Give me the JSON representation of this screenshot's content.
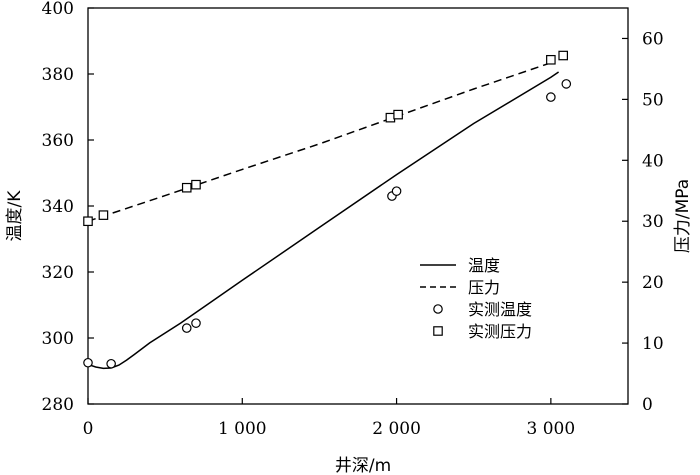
{
  "chart_data": {
    "type": "line",
    "xlabel": "井深/m",
    "ylabel_left": "温度/K",
    "ylabel_right": "压力/MPa",
    "xlim": [
      0,
      3500
    ],
    "ylim_left": [
      280,
      400
    ],
    "ylim_right": [
      0,
      65
    ],
    "x_ticks": [
      0,
      1000,
      2000,
      3000
    ],
    "x_tick_labels": [
      "0",
      "1 000",
      "2 000",
      "3 000"
    ],
    "y_left_ticks": [
      280,
      300,
      320,
      340,
      360,
      380,
      400
    ],
    "y_left_tick_labels": [
      "280",
      "300",
      "320",
      "340",
      "360",
      "380",
      "400"
    ],
    "y_right_ticks": [
      0,
      10,
      20,
      30,
      40,
      50,
      60
    ],
    "y_right_tick_labels": [
      "0",
      "10",
      "20",
      "30",
      "40",
      "50",
      "60"
    ],
    "grid": false,
    "legend_position": "right-center",
    "series": [
      {
        "name": "温度",
        "axis": "left",
        "style": "solid-line",
        "x": [
          0,
          50,
          100,
          150,
          200,
          250,
          300,
          400,
          600,
          800,
          1000,
          1500,
          2000,
          2500,
          3000,
          3050
        ],
        "y": [
          292.0,
          291.2,
          290.8,
          290.9,
          291.8,
          293.3,
          295.0,
          298.5,
          304.5,
          311.0,
          317.5,
          333.5,
          349.5,
          365.0,
          379.0,
          380.6
        ]
      },
      {
        "name": "压力",
        "axis": "right",
        "style": "dashed-line",
        "x": [
          0,
          500,
          1000,
          1500,
          2000,
          2500,
          3000
        ],
        "y": [
          30.0,
          34.2,
          38.5,
          42.7,
          47.2,
          51.7,
          56.0
        ]
      },
      {
        "name": "实测温度",
        "axis": "left",
        "style": "circle-marker",
        "x": [
          0,
          150,
          640,
          700,
          1970,
          2000,
          3000,
          3100
        ],
        "y": [
          292.5,
          292.2,
          303.0,
          304.5,
          343.0,
          344.5,
          373.0,
          377.0
        ]
      },
      {
        "name": "实测压力",
        "axis": "right",
        "style": "square-marker",
        "x": [
          0,
          100,
          640,
          700,
          1960,
          2010,
          3000,
          3080
        ],
        "y": [
          30.0,
          31.0,
          35.5,
          36.0,
          47.0,
          47.5,
          56.5,
          57.2
        ]
      }
    ]
  }
}
